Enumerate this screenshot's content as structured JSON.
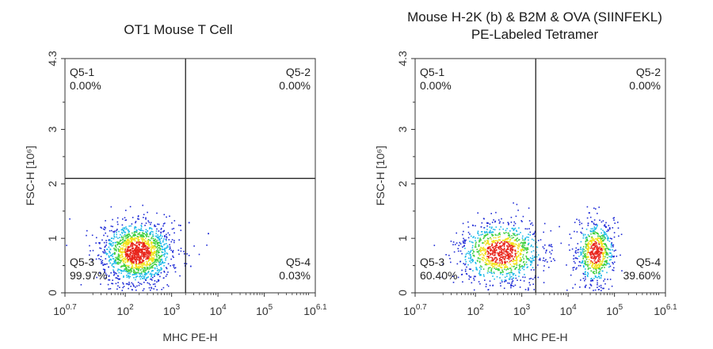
{
  "chart_data": [
    {
      "type": "scatter",
      "title": "OT1 Mouse T Cell",
      "subtitle": "",
      "xlabel": "MHC PE-H",
      "ylabel": "FSC-H [10⁶]",
      "x_scale": "log10",
      "xlim": [
        5.0,
        1259000
      ],
      "ylim": [
        0,
        4.3
      ],
      "x_ticks": [
        {
          "base": "10",
          "exp": "0.7",
          "value": 5.0
        },
        {
          "base": "10",
          "exp": "2",
          "value": 100
        },
        {
          "base": "10",
          "exp": "3",
          "value": 1000
        },
        {
          "base": "10",
          "exp": "4",
          "value": 10000
        },
        {
          "base": "10",
          "exp": "5",
          "value": 100000
        },
        {
          "base": "10",
          "exp": "6.1",
          "value": 1259000
        }
      ],
      "y_ticks": [
        "0",
        "1",
        "2",
        "3",
        "4.3"
      ],
      "y_tick_values": [
        0,
        1,
        2,
        3,
        4.3
      ],
      "gate": {
        "x": 2000,
        "y": 2.1
      },
      "quadrants": [
        {
          "name": "Q5-1",
          "percent": "0.00%",
          "position": "top-left"
        },
        {
          "name": "Q5-2",
          "percent": "0.00%",
          "position": "top-right"
        },
        {
          "name": "Q5-3",
          "percent": "99.97%",
          "position": "bottom-left"
        },
        {
          "name": "Q5-4",
          "percent": "0.03%",
          "position": "bottom-right"
        }
      ],
      "populations": [
        {
          "x_center": 180,
          "y_center": 0.75,
          "x_spread_log": 0.38,
          "y_spread": 0.28,
          "count": 1600
        }
      ],
      "outliers": [
        {
          "x": 1500,
          "y": 1.25
        },
        {
          "x": 2300,
          "y": 1.3
        },
        {
          "x": 6000,
          "y": 1.1
        },
        {
          "x": 2500,
          "y": 0.5
        }
      ],
      "grid": false,
      "legend": "none"
    },
    {
      "type": "scatter",
      "title": "Mouse H-2K (b) & B2M & OVA (SIINFEKL)",
      "subtitle": "PE-Labeled Tetramer",
      "xlabel": "MHC PE-H",
      "ylabel": "FSC-H [10⁶]",
      "x_scale": "log10",
      "xlim": [
        5.0,
        1259000
      ],
      "ylim": [
        0,
        4.3
      ],
      "x_ticks": [
        {
          "base": "10",
          "exp": "0.7",
          "value": 5.0
        },
        {
          "base": "10",
          "exp": "2",
          "value": 100
        },
        {
          "base": "10",
          "exp": "3",
          "value": 1000
        },
        {
          "base": "10",
          "exp": "4",
          "value": 10000
        },
        {
          "base": "10",
          "exp": "5",
          "value": 100000
        },
        {
          "base": "10",
          "exp": "6.1",
          "value": 1259000
        }
      ],
      "y_ticks": [
        "0",
        "1",
        "2",
        "3",
        "4.3"
      ],
      "y_tick_values": [
        0,
        1,
        2,
        3,
        4.3
      ],
      "gate": {
        "x": 2000,
        "y": 2.1
      },
      "quadrants": [
        {
          "name": "Q5-1",
          "percent": "0.00%",
          "position": "top-left"
        },
        {
          "name": "Q5-2",
          "percent": "0.00%",
          "position": "top-right"
        },
        {
          "name": "Q5-3",
          "percent": "60.40%",
          "position": "bottom-left"
        },
        {
          "name": "Q5-4",
          "percent": "39.60%",
          "position": "bottom-right"
        }
      ],
      "populations": [
        {
          "x_center": 350,
          "y_center": 0.75,
          "x_spread_log": 0.45,
          "y_spread": 0.28,
          "count": 1100
        },
        {
          "x_center": 38000,
          "y_center": 0.75,
          "x_spread_log": 0.2,
          "y_spread": 0.28,
          "count": 700
        }
      ],
      "outliers": [],
      "grid": false,
      "legend": "none"
    }
  ],
  "colors": {
    "density_low": "#1f2bd6",
    "density_mid_low": "#18b8e8",
    "density_mid": "#3ecf3e",
    "density_mid_high": "#f2e21a",
    "density_high": "#e8241a",
    "gate_line": "#222222",
    "axis": "#333333"
  }
}
